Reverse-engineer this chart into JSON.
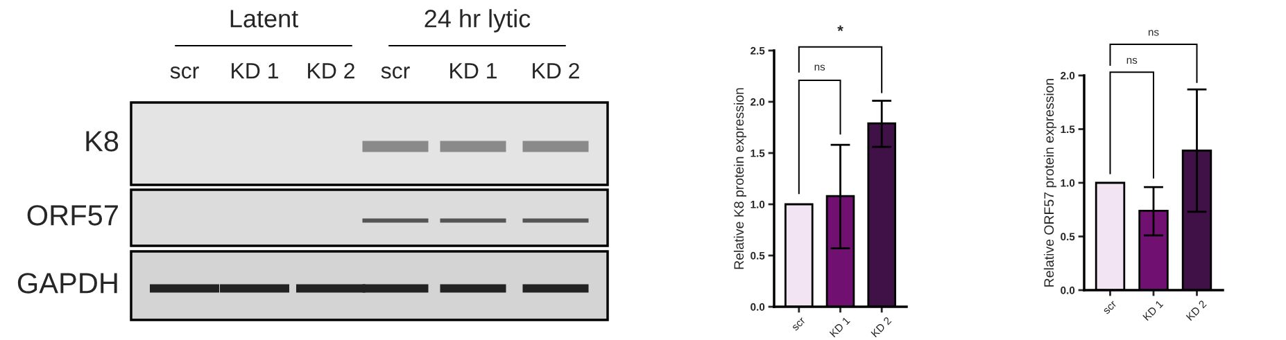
{
  "chart_data": [
    {
      "type": "other",
      "annotations": [
        "Latent",
        "24 hr lytic",
        "scr",
        "KD 1",
        "KD 2",
        "scr",
        "KD 1",
        "KD 2",
        "K8",
        "ORF57",
        "GAPDH"
      ]
    },
    {
      "type": "bar",
      "categories": [
        "scr",
        "KD 1",
        "KD 2"
      ],
      "values": [
        1.0,
        1.08,
        1.79
      ],
      "colors": [
        "#f5e1f7",
        "#800080",
        "#45084f"
      ],
      "errors": [
        null,
        [
          0.57,
          1.58
        ],
        [
          1.56,
          2.01
        ]
      ],
      "ylabel": "Relative K8 protein expression",
      "ylim": [
        0,
        2.5
      ],
      "yticks": [
        {
          "value": 0,
          "label": "0.0"
        },
        0.5,
        {
          "value": 1,
          "label": "1.0"
        },
        1.5,
        {
          "value": 2,
          "label": "2.0"
        },
        2.5
      ],
      "annotations": [
        "ns",
        "*"
      ]
    },
    {
      "type": "bar",
      "categories": [
        "scr",
        "KD 1",
        "KD 2"
      ],
      "values": [
        1.0,
        0.74,
        1.3
      ],
      "colors": [
        "#f5e1f7",
        "#800080",
        "#45084f"
      ],
      "errors": [
        null,
        [
          0.51,
          0.96
        ],
        [
          0.73,
          1.87
        ]
      ],
      "ylabel": "Relative ORF57 protein expression",
      "ylim": [
        0,
        2.0
      ],
      "yticks": [
        {
          "value": 0,
          "label": "0.0"
        },
        0.5,
        {
          "value": 1,
          "label": "1.0"
        },
        1.5,
        {
          "value": 2,
          "label": "2.0"
        }
      ],
      "annotations": [
        "ns",
        "ns"
      ]
    }
  ]
}
